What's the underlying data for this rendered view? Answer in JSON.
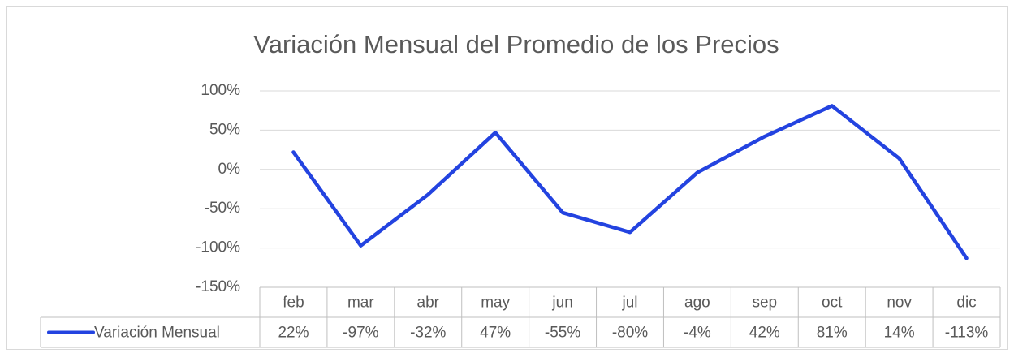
{
  "chart_data": {
    "type": "line",
    "title": "Variación Mensual del Promedio de los Precios",
    "categories": [
      "feb",
      "mar",
      "abr",
      "may",
      "jun",
      "jul",
      "ago",
      "sep",
      "oct",
      "nov",
      "dic"
    ],
    "series": [
      {
        "name": "Variación Mensual",
        "color": "#2343e0",
        "values": [
          22,
          -97,
          -32,
          47,
          -55,
          -80,
          -4,
          42,
          81,
          14,
          -113
        ],
        "value_labels": [
          "22%",
          "-97%",
          "-32%",
          "47%",
          "-55%",
          "-80%",
          "-4%",
          "42%",
          "81%",
          "14%",
          "-113%"
        ]
      }
    ],
    "ylim": [
      -150,
      100
    ],
    "yticks": [
      {
        "value": -150,
        "label": "-150%"
      },
      {
        "value": -100,
        "label": "-100%"
      },
      {
        "value": -50,
        "label": "-50%"
      },
      {
        "value": 0,
        "label": "0%"
      },
      {
        "value": 50,
        "label": "50%"
      },
      {
        "value": 100,
        "label": "100%"
      }
    ],
    "grid": true
  }
}
